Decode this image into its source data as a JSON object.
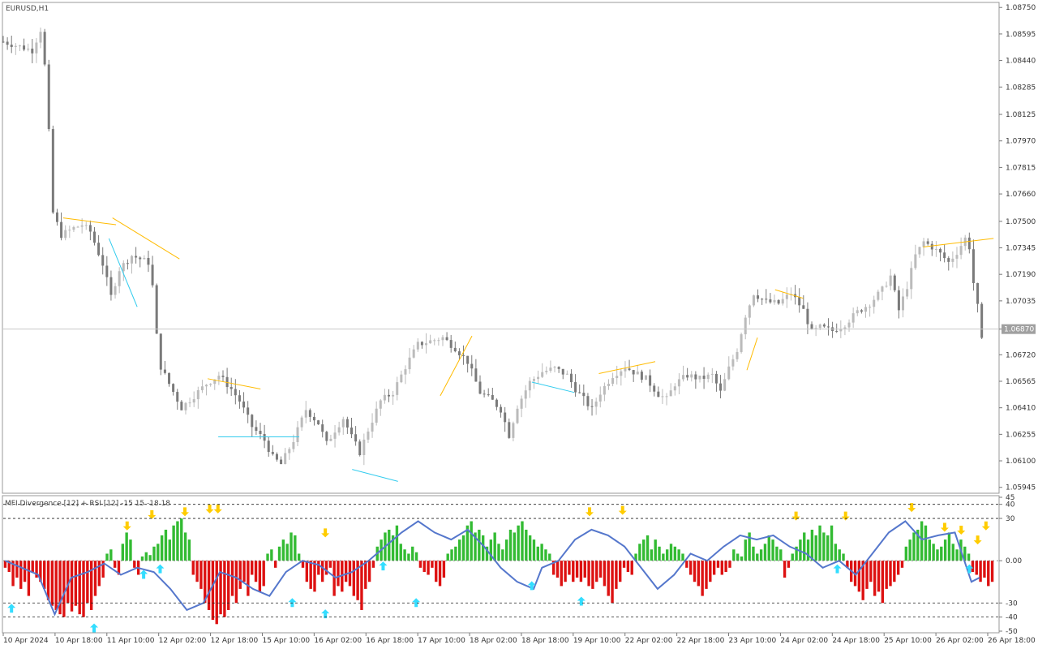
{
  "chart_data": [
    {
      "type": "candlestick",
      "title": "EURUSD,H1",
      "y_ticks": [
        "1.08750",
        "1.08595",
        "1.08440",
        "1.08285",
        "1.08125",
        "1.07970",
        "1.07815",
        "1.07660",
        "1.07500",
        "1.07345",
        "1.07190",
        "1.07035",
        "1.06870",
        "1.06720",
        "1.06565",
        "1.06410",
        "1.06255",
        "1.06100",
        "1.05945"
      ],
      "ylim": [
        1.0592,
        1.0877
      ],
      "current_price": "1.06870",
      "current_price_value": 1.0687,
      "x_ticks": [
        "10 Apr 2024",
        "10 Apr 18:00",
        "11 Apr 10:00",
        "12 Apr 02:00",
        "12 Apr 18:00",
        "15 Apr 10:00",
        "16 Apr 02:00",
        "16 Apr 18:00",
        "17 Apr 10:00",
        "18 Apr 02:00",
        "18 Apr 18:00",
        "19 Apr 10:00",
        "22 Apr 02:00",
        "22 Apr 18:00",
        "23 Apr 10:00",
        "24 Apr 02:00",
        "24 Apr 18:00",
        "25 Apr 10:00",
        "26 Apr 02:00",
        "26 Apr 18:00"
      ],
      "close_path": [
        [
          0,
          1.0855
        ],
        [
          7,
          1.085
        ],
        [
          9,
          1.0862
        ],
        [
          10,
          1.0841
        ],
        [
          11,
          1.0802
        ],
        [
          12,
          1.0755
        ],
        [
          14,
          1.0742
        ],
        [
          17,
          1.0746
        ],
        [
          19,
          1.0748
        ],
        [
          21,
          1.0744
        ],
        [
          24,
          1.0725
        ],
        [
          26,
          1.0706
        ],
        [
          28,
          1.0722
        ],
        [
          31,
          1.073
        ],
        [
          33,
          1.0728
        ],
        [
          35,
          1.0726
        ],
        [
          36,
          1.0712
        ],
        [
          37,
          1.0683
        ],
        [
          38,
          1.0665
        ],
        [
          40,
          1.0655
        ],
        [
          43,
          1.0641
        ],
        [
          46,
          1.0648
        ],
        [
          49,
          1.0655
        ],
        [
          52,
          1.066
        ],
        [
          55,
          1.0652
        ],
        [
          57,
          1.0645
        ],
        [
          60,
          1.063
        ],
        [
          63,
          1.0622
        ],
        [
          65,
          1.0612
        ],
        [
          67,
          1.0608
        ],
        [
          70,
          1.0622
        ],
        [
          73,
          1.064
        ],
        [
          76,
          1.0632
        ],
        [
          78,
          1.062
        ],
        [
          80,
          1.0628
        ],
        [
          82,
          1.0635
        ],
        [
          84,
          1.0624
        ],
        [
          86,
          1.0615
        ],
        [
          88,
          1.0628
        ],
        [
          91,
          1.0645
        ],
        [
          94,
          1.065
        ],
        [
          97,
          1.0665
        ],
        [
          100,
          1.0678
        ],
        [
          103,
          1.068
        ],
        [
          106,
          1.0682
        ],
        [
          109,
          1.0676
        ],
        [
          112,
          1.0668
        ],
        [
          115,
          1.065
        ],
        [
          118,
          1.0645
        ],
        [
          120,
          1.064
        ],
        [
          122,
          1.0625
        ],
        [
          124,
          1.0642
        ],
        [
          127,
          1.0656
        ],
        [
          130,
          1.0662
        ],
        [
          133,
          1.0664
        ],
        [
          136,
          1.066
        ],
        [
          138,
          1.0652
        ],
        [
          140,
          1.0646
        ],
        [
          142,
          1.064
        ],
        [
          144,
          1.065
        ],
        [
          147,
          1.066
        ],
        [
          150,
          1.0665
        ],
        [
          152,
          1.0662
        ],
        [
          155,
          1.0658
        ],
        [
          158,
          1.0649
        ],
        [
          160,
          1.0646
        ],
        [
          162,
          1.0655
        ],
        [
          165,
          1.066
        ],
        [
          168,
          1.0658
        ],
        [
          171,
          1.066
        ],
        [
          173,
          1.065
        ],
        [
          175,
          1.0664
        ],
        [
          177,
          1.0675
        ],
        [
          179,
          1.0695
        ],
        [
          181,
          1.0708
        ],
        [
          184,
          1.0703
        ],
        [
          187,
          1.0702
        ],
        [
          190,
          1.0708
        ],
        [
          193,
          1.0698
        ],
        [
          195,
          1.0685
        ],
        [
          197,
          1.0688
        ],
        [
          200,
          1.0686
        ],
        [
          203,
          1.069
        ],
        [
          206,
          1.0697
        ],
        [
          209,
          1.0702
        ],
        [
          212,
          1.071
        ],
        [
          214,
          1.0718
        ],
        [
          216,
          1.0698
        ],
        [
          218,
          1.0712
        ],
        [
          220,
          1.073
        ],
        [
          222,
          1.0738
        ],
        [
          224,
          1.0735
        ],
        [
          226,
          1.0731
        ],
        [
          228,
          1.0726
        ],
        [
          230,
          1.0732
        ],
        [
          232,
          1.074
        ],
        [
          233,
          1.0735
        ],
        [
          234,
          1.0714
        ],
        [
          235,
          1.07
        ],
        [
          236,
          1.068
        ]
      ]
    },
    {
      "type": "bar+line",
      "title": "MFI Divergence [12] + RSI [12] -15 15 -18 18",
      "title_short": "MFI Divergence [12] + RSI [12] -15 15 -18 18",
      "y_ticks": [
        "45",
        "40",
        "30",
        "0.00",
        "-30",
        "-40",
        "-50"
      ],
      "ylim": [
        -50,
        45
      ],
      "levels": [
        40,
        30,
        -30,
        -40
      ],
      "colors": {
        "positive": "#33bb33",
        "negative": "#dd1111",
        "line": "#5577cc",
        "up_arrow": "#33ddff",
        "down_arrow": "#ffcc00",
        "divergence_bear": "#ffbb00",
        "divergence_bull": "#33ccee"
      },
      "mfi_values": [
        -5,
        -8,
        -18,
        -12,
        -20,
        -15,
        -25,
        -8,
        -12,
        -15,
        -20,
        -28,
        -32,
        -35,
        -38,
        -40,
        -30,
        -36,
        -32,
        -38,
        -40,
        -30,
        -35,
        -25,
        -18,
        -12,
        5,
        8,
        -5,
        -10,
        12,
        20,
        15,
        -5,
        -10,
        3,
        6,
        4,
        10,
        12,
        18,
        22,
        15,
        25,
        28,
        30,
        20,
        15,
        -10,
        -15,
        -20,
        -30,
        -35,
        -42,
        -45,
        -38,
        -40,
        -35,
        -25,
        -30,
        -20,
        -15,
        -25,
        -10,
        -15,
        -22,
        -18,
        5,
        8,
        -5,
        10,
        15,
        12,
        20,
        18,
        5,
        -5,
        -15,
        -20,
        -22,
        -10,
        -15,
        -10,
        -5,
        -25,
        -18,
        -22,
        -15,
        -18,
        -25,
        -28,
        -35,
        -20,
        -15,
        -5,
        10,
        15,
        20,
        22,
        18,
        25,
        12,
        8,
        5,
        10,
        6,
        -5,
        -8,
        -10,
        -5,
        -15,
        -18,
        -12,
        5,
        8,
        10,
        15,
        18,
        25,
        28,
        20,
        22,
        18,
        10,
        15,
        20,
        12,
        8,
        15,
        22,
        20,
        25,
        28,
        22,
        18,
        15,
        10,
        12,
        8,
        5,
        -10,
        -12,
        -18,
        -15,
        -10,
        -15,
        -12,
        -15,
        -12,
        -18,
        -20,
        -15,
        -12,
        -18,
        -25,
        -30,
        -20,
        -15,
        -5,
        -8,
        -10,
        5,
        12,
        15,
        18,
        8,
        15,
        10,
        5,
        8,
        12,
        10,
        8,
        5,
        -5,
        -10,
        -15,
        -18,
        -25,
        -20,
        -15,
        -10,
        -5,
        -10,
        -8,
        -5,
        8,
        5,
        3,
        15,
        20,
        10,
        5,
        8,
        12,
        18,
        15,
        10,
        8,
        -12,
        -5,
        5,
        10,
        15,
        20,
        15,
        22,
        18,
        25,
        20,
        18,
        25,
        12,
        8,
        5,
        -5,
        -15,
        -18,
        -22,
        -28,
        -20,
        -15,
        -25,
        -22,
        -30,
        -20,
        -18,
        -15,
        -10,
        -5,
        10,
        15,
        20,
        22,
        28,
        25,
        15,
        12,
        8,
        10,
        15,
        20,
        12,
        8,
        15,
        10,
        5,
        -8,
        -10,
        -15,
        -12,
        -18,
        -15
      ],
      "rsi_points": [
        [
          0,
          0
        ],
        [
          8,
          -10
        ],
        [
          12,
          -38
        ],
        [
          16,
          -12
        ],
        [
          20,
          -8
        ],
        [
          24,
          -2
        ],
        [
          28,
          -10
        ],
        [
          32,
          -5
        ],
        [
          36,
          -8
        ],
        [
          40,
          -20
        ],
        [
          44,
          -35
        ],
        [
          48,
          -30
        ],
        [
          52,
          -8
        ],
        [
          56,
          -12
        ],
        [
          60,
          -20
        ],
        [
          64,
          -25
        ],
        [
          68,
          -8
        ],
        [
          72,
          0
        ],
        [
          76,
          -3
        ],
        [
          80,
          -12
        ],
        [
          84,
          -8
        ],
        [
          88,
          0
        ],
        [
          92,
          10
        ],
        [
          96,
          20
        ],
        [
          100,
          28
        ],
        [
          104,
          20
        ],
        [
          108,
          15
        ],
        [
          112,
          22
        ],
        [
          116,
          10
        ],
        [
          120,
          -5
        ],
        [
          124,
          -15
        ],
        [
          128,
          -20
        ],
        [
          130,
          -5
        ],
        [
          134,
          0
        ],
        [
          138,
          15
        ],
        [
          142,
          22
        ],
        [
          146,
          18
        ],
        [
          150,
          10
        ],
        [
          154,
          -5
        ],
        [
          158,
          -20
        ],
        [
          162,
          -10
        ],
        [
          166,
          5
        ],
        [
          170,
          0
        ],
        [
          174,
          10
        ],
        [
          178,
          18
        ],
        [
          182,
          15
        ],
        [
          186,
          18
        ],
        [
          190,
          10
        ],
        [
          194,
          5
        ],
        [
          198,
          -5
        ],
        [
          202,
          0
        ],
        [
          206,
          -10
        ],
        [
          210,
          5
        ],
        [
          214,
          20
        ],
        [
          218,
          28
        ],
        [
          222,
          15
        ],
        [
          226,
          18
        ],
        [
          230,
          20
        ],
        [
          234,
          -15
        ],
        [
          236,
          -12
        ]
      ],
      "up_arrows": [
        [
          2,
          -34
        ],
        [
          22,
          -48
        ],
        [
          34,
          -10
        ],
        [
          38,
          -6
        ],
        [
          70,
          -30
        ],
        [
          78,
          -38
        ],
        [
          92,
          -4
        ],
        [
          100,
          -30
        ],
        [
          128,
          -18
        ],
        [
          140,
          -29
        ],
        [
          202,
          -6
        ],
        [
          234,
          -6
        ]
      ],
      "down_arrows": [
        [
          30,
          25
        ],
        [
          36,
          33
        ],
        [
          44,
          35
        ],
        [
          50,
          37
        ],
        [
          52,
          37
        ],
        [
          78,
          20
        ],
        [
          142,
          35
        ],
        [
          150,
          36
        ],
        [
          192,
          32
        ],
        [
          204,
          32
        ],
        [
          220,
          38
        ],
        [
          238,
          25
        ],
        [
          228,
          24
        ],
        [
          232,
          22
        ],
        [
          236,
          15
        ]
      ]
    }
  ]
}
